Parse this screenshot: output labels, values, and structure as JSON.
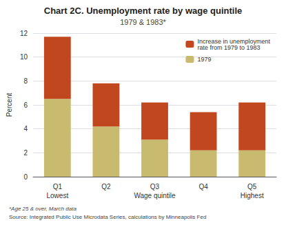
{
  "chart_data": {
    "type": "bar",
    "title": "Chart 2C. Unemployment rate by wage quintile",
    "subtitle": "1979 & 1983*",
    "ylabel": "Percent",
    "categories": [
      "Q1",
      "Q2",
      "Q3",
      "Q4",
      "Q5"
    ],
    "annotations": [
      {
        "x": "Q1",
        "text": "Lowest"
      },
      {
        "x": "Q3",
        "text": "Wage quintile"
      },
      {
        "x": "Q5",
        "text": "Highest"
      }
    ],
    "series": [
      {
        "name": "1979",
        "color": "#c8ba6e",
        "values": [
          6.5,
          4.2,
          3.1,
          2.2,
          2.2
        ]
      },
      {
        "name": "Increase in unemployment\nrate from 1979 to 1983",
        "color": "#c0471e",
        "values": [
          5.2,
          3.6,
          3.1,
          3.2,
          4.0
        ]
      }
    ],
    "stacked": true,
    "ylim": [
      0,
      12
    ],
    "yticks": [
      0,
      2,
      4,
      6,
      8,
      10,
      12
    ],
    "grid": true,
    "legend": "upper right",
    "footnotes": [
      "*Age 25 & over, March data",
      "Source: Integrated Public Use Microdata Series, calculations by Minneapolis Fed"
    ]
  }
}
